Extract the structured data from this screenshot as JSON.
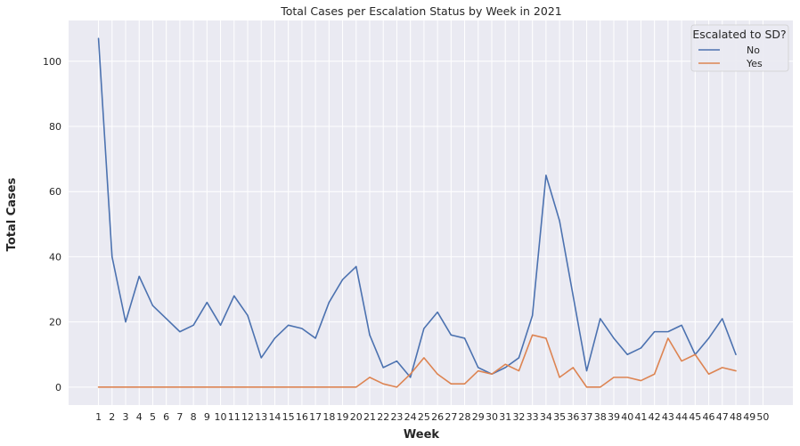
{
  "chart_data": {
    "type": "line",
    "title": "Total Cases per Escalation Status by Week in 2021",
    "xlabel": "Week",
    "ylabel": "Total Cases",
    "x": [
      1,
      2,
      3,
      4,
      5,
      6,
      7,
      8,
      9,
      10,
      11,
      12,
      13,
      14,
      15,
      16,
      17,
      18,
      19,
      20,
      21,
      22,
      23,
      24,
      25,
      26,
      27,
      28,
      29,
      30,
      31,
      32,
      33,
      34,
      35,
      36,
      37,
      38,
      39,
      40,
      41,
      42,
      43,
      44,
      45,
      46,
      47,
      48,
      49,
      50
    ],
    "yticks": [
      0,
      20,
      40,
      60,
      80,
      100
    ],
    "ylim": [
      -5.5,
      112.5
    ],
    "grid": true,
    "legend": {
      "title": "Escalated to SD?",
      "placement": "top-right"
    },
    "series": [
      {
        "name": "No",
        "color": "#4c72b0",
        "values": [
          107,
          40,
          20,
          34,
          25,
          21,
          17,
          19,
          26,
          19,
          28,
          22,
          9,
          15,
          19,
          18,
          15,
          26,
          33,
          37,
          16,
          6,
          8,
          3,
          18,
          23,
          16,
          15,
          6,
          4,
          6,
          9,
          22,
          65,
          51,
          28,
          5,
          21,
          15,
          10,
          12,
          17,
          17,
          19,
          10,
          15,
          21,
          10,
          null,
          null
        ]
      },
      {
        "name": "Yes",
        "color": "#dd8452",
        "values": [
          0,
          0,
          0,
          0,
          0,
          0,
          0,
          0,
          0,
          0,
          0,
          0,
          0,
          0,
          0,
          0,
          0,
          0,
          0,
          0,
          3,
          1,
          0,
          4,
          9,
          4,
          1,
          1,
          5,
          4,
          7,
          5,
          16,
          15,
          3,
          6,
          0,
          0,
          3,
          3,
          2,
          4,
          15,
          8,
          10,
          4,
          6,
          5,
          null,
          null
        ]
      }
    ]
  }
}
